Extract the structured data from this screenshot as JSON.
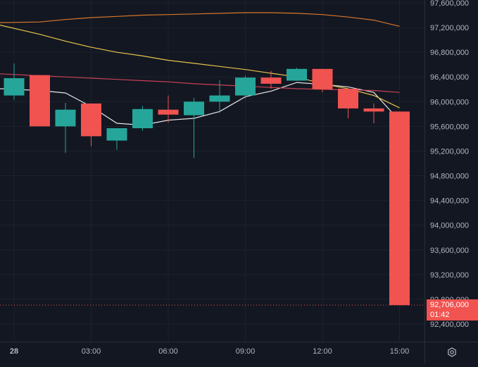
{
  "colors": {
    "background": "#131722",
    "grid": "#1e222d",
    "up": "#26a69a",
    "down": "#f05350",
    "axis_text": "#b2b5be",
    "ma_white": "#e6e6e6",
    "ma_yellow": "#e6c34a",
    "ma_orange": "#d9772b",
    "ma_red": "#c94257"
  },
  "last_price": {
    "value": "92,706,000",
    "countdown": "01:42"
  },
  "settings_icon": "gear-icon",
  "chart_data": {
    "type": "candlestick",
    "x_tick_labels": [
      "28",
      "03:00",
      "06:00",
      "09:00",
      "12:00",
      "15:00"
    ],
    "y_tick_labels": [
      "97,600,000",
      "97,200,000",
      "96,800,000",
      "96,400,000",
      "96,000,000",
      "95,600,000",
      "95,200,000",
      "94,800,000",
      "94,400,000",
      "94,000,000",
      "93,600,000",
      "93,200,000",
      "92,800,000",
      "92,400,000"
    ],
    "ylim": [
      92250000,
      97650000
    ],
    "candle_interval": "1h",
    "candles": [
      {
        "time": "00:00",
        "open": 96100000,
        "high": 96620000,
        "low": 96030000,
        "close": 96380000
      },
      {
        "time": "01:00",
        "open": 96430000,
        "high": 96430000,
        "low": 95600000,
        "close": 95600000
      },
      {
        "time": "02:00",
        "open": 95600000,
        "high": 95980000,
        "low": 95170000,
        "close": 95870000
      },
      {
        "time": "03:00",
        "open": 95970000,
        "high": 95970000,
        "low": 95280000,
        "close": 95440000
      },
      {
        "time": "04:00",
        "open": 95370000,
        "high": 95570000,
        "low": 95220000,
        "close": 95570000
      },
      {
        "time": "05:00",
        "open": 95570000,
        "high": 95930000,
        "low": 95530000,
        "close": 95880000
      },
      {
        "time": "06:00",
        "open": 95870000,
        "high": 96100000,
        "low": 95660000,
        "close": 95790000
      },
      {
        "time": "07:00",
        "open": 95780000,
        "high": 96060000,
        "low": 95090000,
        "close": 96000000
      },
      {
        "time": "08:00",
        "open": 96000000,
        "high": 96350000,
        "low": 95820000,
        "close": 96100000
      },
      {
        "time": "09:00",
        "open": 96100000,
        "high": 96420000,
        "low": 96050000,
        "close": 96390000
      },
      {
        "time": "10:00",
        "open": 96390000,
        "high": 96500000,
        "low": 96210000,
        "close": 96290000
      },
      {
        "time": "11:00",
        "open": 96340000,
        "high": 96550000,
        "low": 96340000,
        "close": 96530000
      },
      {
        "time": "12:00",
        "open": 96530000,
        "high": 96530000,
        "low": 96150000,
        "close": 96200000
      },
      {
        "time": "13:00",
        "open": 96210000,
        "high": 96210000,
        "low": 95730000,
        "close": 95890000
      },
      {
        "time": "14:00",
        "open": 95890000,
        "high": 95970000,
        "low": 95650000,
        "close": 95840000
      },
      {
        "time": "15:00",
        "open": 95840000,
        "high": 95840000,
        "low": 92706000,
        "close": 92706000
      }
    ],
    "moving_averages": [
      {
        "color": "white",
        "values": [
          96210000,
          96180000,
          96140000,
          95920000,
          95650000,
          95620000,
          95700000,
          95730000,
          95840000,
          96080000,
          96170000,
          96310000,
          96280000,
          96240000,
          96150000,
          95690000
        ]
      },
      {
        "color": "yellow",
        "values": [
          97240000,
          97090000,
          96980000,
          96880000,
          96800000,
          96740000,
          96670000,
          96620000,
          96570000,
          96520000,
          96460000,
          96400000,
          96290000,
          96210000,
          96100000,
          95900000
        ]
      },
      {
        "color": "orange",
        "values": [
          97280000,
          97290000,
          97330000,
          97360000,
          97380000,
          97400000,
          97410000,
          97420000,
          97430000,
          97440000,
          97440000,
          97430000,
          97410000,
          97370000,
          97320000,
          97220000
        ]
      },
      {
        "color": "red",
        "values": [
          96450000,
          96420000,
          96400000,
          96380000,
          96360000,
          96340000,
          96320000,
          96290000,
          96270000,
          96250000,
          96230000,
          96210000,
          96200000,
          96190000,
          96180000,
          96150000
        ]
      }
    ],
    "last_price_line": 92706000
  }
}
